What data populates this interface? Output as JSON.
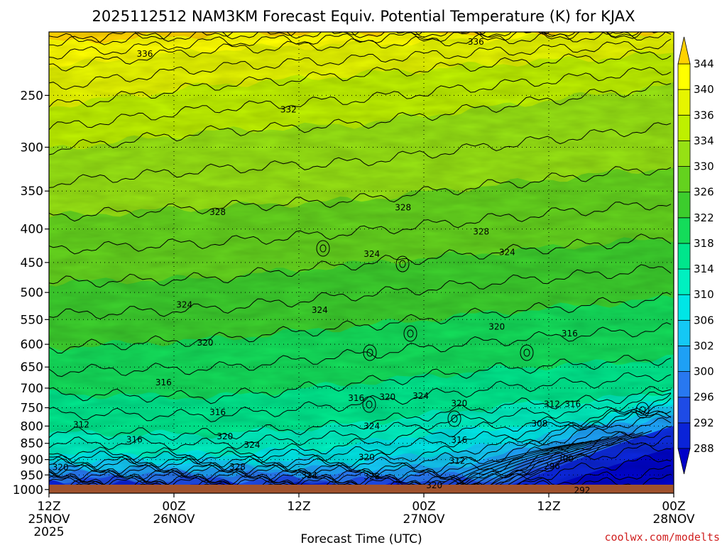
{
  "chart_data": {
    "type": "heatmap",
    "title": "2025112512 NAM3KM Forecast Equiv. Potential Temperature (K) for KJAX",
    "xlabel": "Forecast Time (UTC)",
    "ylabel": "",
    "x_ticks": [
      {
        "hours": 0,
        "label": "12Z",
        "sub": "25NOV",
        "sub2": "2025"
      },
      {
        "hours": 12,
        "label": "00Z",
        "sub": "26NOV",
        "sub2": ""
      },
      {
        "hours": 24,
        "label": "12Z",
        "sub": "",
        "sub2": ""
      },
      {
        "hours": 36,
        "label": "00Z",
        "sub": "27NOV",
        "sub2": ""
      },
      {
        "hours": 48,
        "label": "12Z",
        "sub": "",
        "sub2": ""
      },
      {
        "hours": 60,
        "label": "00Z",
        "sub": "28NOV",
        "sub2": ""
      }
    ],
    "xlim": [
      0,
      60
    ],
    "y_ticks": [
      250,
      300,
      350,
      400,
      450,
      500,
      550,
      600,
      650,
      700,
      750,
      800,
      850,
      900,
      950,
      1000
    ],
    "ylim": [
      1013,
      200
    ],
    "y_scale": "log",
    "grid": true,
    "colorbar": {
      "levels": [
        288,
        292,
        296,
        300,
        302,
        306,
        310,
        314,
        318,
        322,
        326,
        330,
        334,
        336,
        340,
        344
      ],
      "colors": [
        "#0000c8",
        "#0a23d8",
        "#1e4be6",
        "#2878f0",
        "#1ea0f5",
        "#14c8f5",
        "#00e6e6",
        "#00f0c0",
        "#00e68c",
        "#14dc5a",
        "#3ccd2d",
        "#64d21e",
        "#96e114",
        "#bef000",
        "#e6f500",
        "#ffff00",
        "#ffd200"
      ],
      "position": "right"
    },
    "contour_labels": [
      {
        "hours": 41,
        "p": 207,
        "value": "336"
      },
      {
        "hours": 9.2,
        "p": 216,
        "value": "336"
      },
      {
        "hours": 23,
        "p": 263,
        "value": "332"
      },
      {
        "hours": 16.2,
        "p": 377,
        "value": "328"
      },
      {
        "hours": 34,
        "p": 371,
        "value": "328"
      },
      {
        "hours": 41.5,
        "p": 404,
        "value": "328"
      },
      {
        "hours": 31,
        "p": 437,
        "value": "324"
      },
      {
        "hours": 44,
        "p": 434,
        "value": "324"
      },
      {
        "hours": 13,
        "p": 522,
        "value": "324"
      },
      {
        "hours": 26,
        "p": 532,
        "value": "324"
      },
      {
        "hours": 43,
        "p": 564,
        "value": "320"
      },
      {
        "hours": 50,
        "p": 578,
        "value": "316"
      },
      {
        "hours": 15,
        "p": 597,
        "value": "320"
      },
      {
        "hours": 11,
        "p": 686,
        "value": "316"
      },
      {
        "hours": 29.5,
        "p": 725,
        "value": "316"
      },
      {
        "hours": 32.5,
        "p": 722,
        "value": "320"
      },
      {
        "hours": 35.7,
        "p": 720,
        "value": "324"
      },
      {
        "hours": 39.4,
        "p": 739,
        "value": "320"
      },
      {
        "hours": 48.3,
        "p": 741,
        "value": "312"
      },
      {
        "hours": 50.3,
        "p": 741,
        "value": "316"
      },
      {
        "hours": 16.2,
        "p": 762,
        "value": "316"
      },
      {
        "hours": 3.1,
        "p": 796,
        "value": "312"
      },
      {
        "hours": 31,
        "p": 800,
        "value": "324"
      },
      {
        "hours": 47.1,
        "p": 793,
        "value": "308"
      },
      {
        "hours": 8.2,
        "p": 839,
        "value": "316"
      },
      {
        "hours": 16.9,
        "p": 830,
        "value": "320"
      },
      {
        "hours": 19.5,
        "p": 855,
        "value": "324"
      },
      {
        "hours": 39.4,
        "p": 840,
        "value": "316"
      },
      {
        "hours": 30.5,
        "p": 893,
        "value": "320"
      },
      {
        "hours": 39.2,
        "p": 904,
        "value": "312"
      },
      {
        "hours": 49.6,
        "p": 898,
        "value": "300"
      },
      {
        "hours": 1.1,
        "p": 925,
        "value": "320"
      },
      {
        "hours": 18.1,
        "p": 924,
        "value": "328"
      },
      {
        "hours": 48.3,
        "p": 921,
        "value": "296"
      },
      {
        "hours": 25,
        "p": 952,
        "value": "324"
      },
      {
        "hours": 31,
        "p": 955,
        "value": "328"
      },
      {
        "hours": 37,
        "p": 985,
        "value": "320"
      },
      {
        "hours": 51.2,
        "p": 1003,
        "value": "292"
      }
    ]
  },
  "credit": "coolwx.com/modelts"
}
